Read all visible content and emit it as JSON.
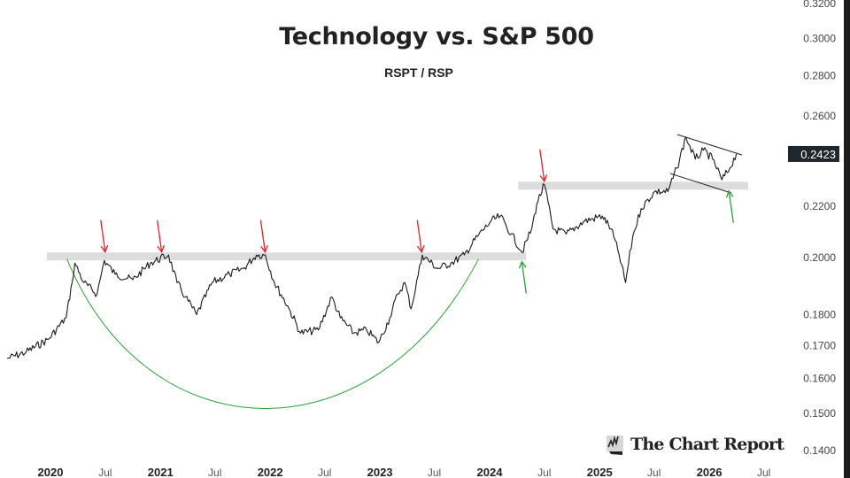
{
  "chart_data": {
    "type": "line",
    "title": "Technology vs. S&P 500",
    "subtitle": "RSPT / RSP",
    "y_scale": "log",
    "ylim": [
      0.14,
      0.32
    ],
    "y_ticks": [
      "0.3200",
      "0.3000",
      "0.2800",
      "0.2600",
      "0.2200",
      "0.2000",
      "0.1800",
      "0.1700",
      "0.1600",
      "0.1500",
      "0.1400"
    ],
    "x_ticks": [
      {
        "date": "2020-01-01",
        "label": "2020",
        "major": true
      },
      {
        "date": "2020-07-01",
        "label": "Jul",
        "major": false
      },
      {
        "date": "2021-01-01",
        "label": "2021",
        "major": true
      },
      {
        "date": "2021-07-01",
        "label": "Jul",
        "major": false
      },
      {
        "date": "2022-01-01",
        "label": "2022",
        "major": true
      },
      {
        "date": "2022-07-01",
        "label": "Jul",
        "major": false
      },
      {
        "date": "2023-01-01",
        "label": "2023",
        "major": true
      },
      {
        "date": "2023-07-01",
        "label": "Jul",
        "major": false
      },
      {
        "date": "2024-01-01",
        "label": "2024",
        "major": true
      },
      {
        "date": "2024-07-01",
        "label": "Jul",
        "major": false
      },
      {
        "date": "2025-01-01",
        "label": "2025",
        "major": true
      },
      {
        "date": "2025-07-01",
        "label": "Jul",
        "major": false
      },
      {
        "date": "2026-01-01",
        "label": "2026",
        "major": true
      },
      {
        "date": "2026-07-01",
        "label": "Jul",
        "major": false
      }
    ],
    "grid": false,
    "last_value_label": "0.2423",
    "series": [
      {
        "color": "#1a1a1a",
        "points": [
          [
            "2019-08-10",
            0.166
          ],
          [
            "2019-10-12",
            0.168
          ],
          [
            "2019-12-25",
            0.172
          ],
          [
            "2020-02-22",
            0.179
          ],
          [
            "2020-03-13",
            0.191
          ],
          [
            "2020-03-22",
            0.198
          ],
          [
            "2020-04-21",
            0.191
          ],
          [
            "2020-06-04",
            0.187
          ],
          [
            "2020-06-28",
            0.199
          ],
          [
            "2020-08-03",
            0.194
          ],
          [
            "2020-10-01",
            0.192
          ],
          [
            "2020-11-28",
            0.198
          ],
          [
            "2021-01-28",
            0.201
          ],
          [
            "2021-02-25",
            0.191
          ],
          [
            "2021-03-25",
            0.186
          ],
          [
            "2021-05-01",
            0.18
          ],
          [
            "2021-06-22",
            0.191
          ],
          [
            "2021-08-19",
            0.194
          ],
          [
            "2021-10-03",
            0.196
          ],
          [
            "2021-11-16",
            0.201
          ],
          [
            "2021-12-16",
            0.201
          ],
          [
            "2022-01-15",
            0.191
          ],
          [
            "2022-02-28",
            0.183
          ],
          [
            "2022-04-12",
            0.174
          ],
          [
            "2022-06-10",
            0.175
          ],
          [
            "2022-07-25",
            0.186
          ],
          [
            "2022-08-22",
            0.179
          ],
          [
            "2022-10-06",
            0.174
          ],
          [
            "2022-11-18",
            0.175
          ],
          [
            "2022-12-28",
            0.171
          ],
          [
            "2023-02-03",
            0.179
          ],
          [
            "2023-03-01",
            0.187
          ],
          [
            "2023-03-25",
            0.191
          ],
          [
            "2023-04-15",
            0.182
          ],
          [
            "2023-05-22",
            0.201
          ],
          [
            "2023-07-12",
            0.196
          ],
          [
            "2023-08-25",
            0.198
          ],
          [
            "2023-10-09",
            0.201
          ],
          [
            "2023-11-21",
            0.208
          ],
          [
            "2024-01-06",
            0.214
          ],
          [
            "2024-02-05",
            0.216
          ],
          [
            "2024-03-13",
            0.209
          ],
          [
            "2024-04-18",
            0.202
          ],
          [
            "2024-05-20",
            0.211
          ],
          [
            "2024-06-06",
            0.221
          ],
          [
            "2024-07-01",
            0.229
          ],
          [
            "2024-07-30",
            0.211
          ],
          [
            "2024-09-12",
            0.209
          ],
          [
            "2024-11-12",
            0.214
          ],
          [
            "2025-01-10",
            0.216
          ],
          [
            "2025-02-08",
            0.211
          ],
          [
            "2025-03-07",
            0.201
          ],
          [
            "2025-03-28",
            0.191
          ],
          [
            "2025-04-21",
            0.208
          ],
          [
            "2025-05-19",
            0.219
          ],
          [
            "2025-07-03",
            0.226
          ],
          [
            "2025-08-16",
            0.226
          ],
          [
            "2025-09-15",
            0.236
          ],
          [
            "2025-10-15",
            0.25
          ],
          [
            "2025-11-15",
            0.24
          ],
          [
            "2025-12-12",
            0.244
          ],
          [
            "2026-01-12",
            0.24
          ],
          [
            "2026-02-12",
            0.231
          ],
          [
            "2026-03-10",
            0.236
          ],
          [
            "2026-04-01",
            0.2423
          ]
        ]
      }
    ],
    "annotations": {
      "resistance_bands": [
        {
          "level": 0.2005,
          "from": "2019-12-20",
          "to": "2024-05-01",
          "color": "#dddddd"
        },
        {
          "level": 0.2285,
          "from": "2024-04-05",
          "to": "2026-05-10",
          "color": "#dddddd"
        }
      ],
      "red_arrows": [
        "2020-07-01",
        "2021-01-05",
        "2021-12-15",
        "2023-05-20",
        "2024-07-01"
      ],
      "green_arrows": [
        "2024-04-20",
        "2026-03-10"
      ],
      "cup_color": "#2e9e3a",
      "arrow_red": "#e0202a",
      "arrow_green": "#2e9e3a"
    }
  },
  "brand": {
    "name": "The Chart Report"
  }
}
